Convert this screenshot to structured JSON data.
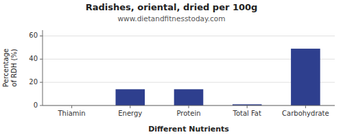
{
  "chart_data": {
    "type": "bar",
    "title": "Radishes, oriental, dried per 100g",
    "subtitle": "www.dietandfitnesstoday.com",
    "xlabel": "Different Nutrients",
    "ylabel": "Percentage\nof RDH (%)",
    "categories": [
      "Thiamin",
      "Energy",
      "Protein",
      "Total Fat",
      "Carbohydrate"
    ],
    "values": [
      0,
      14,
      14,
      1,
      49
    ],
    "color": "#2e3f8e",
    "ylim": [
      0,
      65
    ],
    "yticks": [
      0,
      20,
      40,
      60
    ],
    "grid": true
  }
}
